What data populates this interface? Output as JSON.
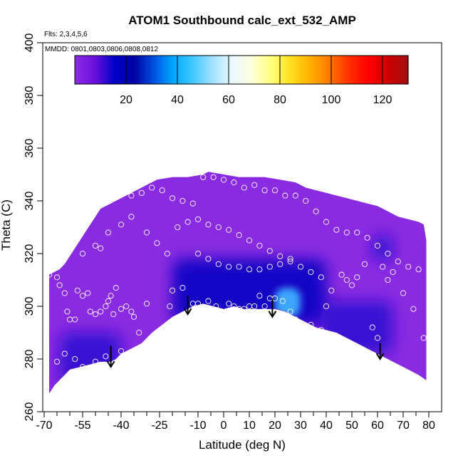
{
  "chart_data": {
    "type": "heatmap",
    "title": "ATOM1 Southbound calc_ext_532_AMP",
    "subtitle_flights": "Flts: 2,3,4,5,6",
    "subtitle_dates": "MMDD: 0801,0803,0806,0808,0812",
    "xlabel": "Latitude (deg N)",
    "ylabel": "Theta (C)",
    "xlim": [
      -70,
      80
    ],
    "ylim": [
      260,
      400
    ],
    "x_ticks": [
      -70,
      -55,
      -40,
      -25,
      -10,
      0,
      10,
      20,
      30,
      40,
      50,
      60,
      70,
      80
    ],
    "x_tick_labels": [
      "-70",
      "-55",
      "-40",
      "-25",
      "-10",
      "0",
      "10",
      "20",
      "30",
      "40",
      "50",
      "60",
      "70",
      "80"
    ],
    "y_ticks": [
      260,
      280,
      300,
      320,
      340,
      360,
      380,
      400
    ],
    "y_tick_labels": [
      "260",
      "280",
      "300",
      "320",
      "340",
      "360",
      "380",
      "400"
    ],
    "colorbar": {
      "range": [
        0,
        130
      ],
      "ticks": [
        20,
        40,
        60,
        80,
        100,
        120
      ],
      "tick_labels": [
        "20",
        "40",
        "60",
        "80",
        "100",
        "120"
      ],
      "colors": [
        "#8a2be2",
        "#6a10dd",
        "#0000c8",
        "#0000a0",
        "#0050e0",
        "#00a8ff",
        "#40c8ff",
        "#a0e0ff",
        "#e8f8ff",
        "#ffffe0",
        "#ffff80",
        "#ffe020",
        "#ffb000",
        "#ff7800",
        "#ff3000",
        "#ff0000",
        "#d00000",
        "#a01010"
      ]
    },
    "field_color_background": "#8a2be2",
    "field_color_low": "#0a0ad0",
    "field_color_high": "#40b0ff",
    "upper_boundary": [
      [
        -68,
        312
      ],
      [
        -66,
        313
      ],
      [
        -64,
        314
      ],
      [
        -62,
        316
      ],
      [
        -60,
        319
      ],
      [
        -58,
        322
      ],
      [
        -56,
        325
      ],
      [
        -54,
        328
      ],
      [
        -52,
        331
      ],
      [
        -50,
        334
      ],
      [
        -48,
        337
      ],
      [
        -46,
        338
      ],
      [
        -44,
        339
      ],
      [
        -42,
        340
      ],
      [
        -40,
        341
      ],
      [
        -38,
        342
      ],
      [
        -36,
        343
      ],
      [
        -34,
        344
      ],
      [
        -32,
        345
      ],
      [
        -30,
        346
      ],
      [
        -28,
        347
      ],
      [
        -26,
        348
      ],
      [
        -20,
        349
      ],
      [
        -14,
        349
      ],
      [
        -8,
        350
      ],
      [
        -6,
        351
      ],
      [
        0,
        350
      ],
      [
        6,
        349
      ],
      [
        10,
        349
      ],
      [
        16,
        349
      ],
      [
        22,
        348
      ],
      [
        28,
        347
      ],
      [
        32,
        345
      ],
      [
        36,
        344
      ],
      [
        40,
        343
      ],
      [
        44,
        342
      ],
      [
        48,
        341
      ],
      [
        52,
        340
      ],
      [
        56,
        339
      ],
      [
        60,
        338
      ],
      [
        64,
        336
      ],
      [
        68,
        334
      ],
      [
        72,
        333
      ],
      [
        76,
        332
      ],
      [
        78,
        331
      ],
      [
        79,
        325
      ]
    ],
    "lower_boundary": [
      [
        -68,
        267
      ],
      [
        -66,
        270
      ],
      [
        -64,
        272
      ],
      [
        -62,
        274
      ],
      [
        -60,
        276
      ],
      [
        -56,
        277
      ],
      [
        -52,
        278
      ],
      [
        -48,
        279
      ],
      [
        -44,
        279
      ],
      [
        -42,
        280
      ],
      [
        -40,
        282
      ],
      [
        -36,
        284
      ],
      [
        -32,
        286
      ],
      [
        -28,
        290
      ],
      [
        -24,
        293
      ],
      [
        -20,
        296
      ],
      [
        -16,
        298
      ],
      [
        -12,
        300
      ],
      [
        -8,
        301
      ],
      [
        -4,
        300
      ],
      [
        0,
        299
      ],
      [
        4,
        300
      ],
      [
        8,
        299
      ],
      [
        12,
        299
      ],
      [
        16,
        299
      ],
      [
        20,
        299
      ],
      [
        24,
        298
      ],
      [
        28,
        296
      ],
      [
        32,
        294
      ],
      [
        36,
        292
      ],
      [
        40,
        291
      ],
      [
        44,
        290
      ],
      [
        48,
        288
      ],
      [
        52,
        286
      ],
      [
        56,
        284
      ],
      [
        60,
        282
      ],
      [
        64,
        280
      ],
      [
        68,
        278
      ],
      [
        72,
        276
      ],
      [
        76,
        274
      ],
      [
        79,
        272
      ]
    ],
    "enhancement_regions": [
      {
        "lat": [
          -20,
          40
        ],
        "theta": [
          293,
          318
        ],
        "level": "high"
      },
      {
        "lat": [
          -64,
          -40
        ],
        "theta": [
          270,
          290
        ],
        "level": "medium"
      },
      {
        "lat": [
          38,
          66
        ],
        "theta": [
          282,
          302
        ],
        "level": "medium"
      },
      {
        "lat": [
          20,
          30
        ],
        "theta": [
          296,
          307
        ],
        "level": "peak"
      },
      {
        "lat": [
          58,
          66
        ],
        "theta": [
          317,
          327
        ],
        "level": "medium"
      }
    ],
    "arrows": [
      {
        "lat": -44,
        "theta_top": 285,
        "theta_tip": 277
      },
      {
        "lat": -14,
        "theta_top": 304,
        "theta_tip": 297
      },
      {
        "lat": 19,
        "theta_top": 303,
        "theta_tip": 296
      },
      {
        "lat": 61,
        "theta_top": 286,
        "theta_tip": 280
      }
    ],
    "sample_points": [
      [
        -68,
        312
      ],
      [
        -65,
        311
      ],
      [
        -64,
        308
      ],
      [
        -62,
        305
      ],
      [
        -61,
        298
      ],
      [
        -60,
        295
      ],
      [
        -58,
        295
      ],
      [
        -57,
        306
      ],
      [
        -55,
        304
      ],
      [
        -53,
        305
      ],
      [
        -52,
        298
      ],
      [
        -50,
        297
      ],
      [
        -48,
        298
      ],
      [
        -46,
        300
      ],
      [
        -45,
        302
      ],
      [
        -44,
        304
      ],
      [
        -43,
        297
      ],
      [
        -42,
        307
      ],
      [
        -40,
        299
      ],
      [
        -38,
        300
      ],
      [
        -36,
        298
      ],
      [
        -35,
        296
      ],
      [
        -33,
        290
      ],
      [
        -30,
        301
      ],
      [
        -28,
        286
      ],
      [
        -26,
        283
      ],
      [
        -24,
        289
      ],
      [
        -21,
        300
      ],
      [
        -20,
        306
      ],
      [
        -19,
        293
      ],
      [
        -16,
        307
      ],
      [
        -12,
        301
      ],
      [
        -10,
        301
      ],
      [
        -6,
        302
      ],
      [
        -3,
        300
      ],
      [
        -1,
        298
      ],
      [
        2,
        301
      ],
      [
        4,
        300
      ],
      [
        6,
        299
      ],
      [
        8,
        299
      ],
      [
        10,
        300
      ],
      [
        12,
        300
      ],
      [
        14,
        304
      ],
      [
        16,
        300
      ],
      [
        18,
        303
      ],
      [
        20,
        303
      ],
      [
        23,
        302
      ],
      [
        26,
        298
      ],
      [
        28,
        295
      ],
      [
        32,
        292
      ],
      [
        34,
        293
      ],
      [
        38,
        291
      ],
      [
        40,
        300
      ],
      [
        42,
        306
      ],
      [
        46,
        312
      ],
      [
        48,
        310
      ],
      [
        50,
        308
      ],
      [
        52,
        311
      ],
      [
        55,
        316
      ],
      [
        58,
        292
      ],
      [
        60,
        288
      ],
      [
        62,
        315
      ],
      [
        64,
        310
      ],
      [
        66,
        313
      ],
      [
        70,
        305
      ],
      [
        74,
        299
      ],
      [
        78,
        288
      ],
      [
        -65,
        279
      ],
      [
        -62,
        282
      ],
      [
        -58,
        280
      ],
      [
        -55,
        277
      ],
      [
        -50,
        279
      ],
      [
        -46,
        281
      ],
      [
        -43,
        278
      ],
      [
        -40,
        283
      ],
      [
        -55,
        320
      ],
      [
        -50,
        323
      ],
      [
        -48,
        322
      ],
      [
        -45,
        328
      ],
      [
        -40,
        331
      ],
      [
        -36,
        342
      ],
      [
        -32,
        343
      ],
      [
        -28,
        345
      ],
      [
        -24,
        344
      ],
      [
        -20,
        341
      ],
      [
        -16,
        340
      ],
      [
        -12,
        339
      ],
      [
        -8,
        349
      ],
      [
        -4,
        349
      ],
      [
        0,
        348
      ],
      [
        4,
        347
      ],
      [
        8,
        345
      ],
      [
        12,
        346
      ],
      [
        16,
        344
      ],
      [
        20,
        344
      ],
      [
        24,
        342
      ],
      [
        28,
        342
      ],
      [
        32,
        340
      ],
      [
        36,
        336
      ],
      [
        40,
        332
      ],
      [
        44,
        329
      ],
      [
        48,
        328
      ],
      [
        52,
        328
      ],
      [
        56,
        326
      ],
      [
        60,
        323
      ],
      [
        64,
        320
      ],
      [
        68,
        317
      ],
      [
        72,
        315
      ],
      [
        76,
        314
      ],
      [
        -36,
        334
      ],
      [
        -30,
        328
      ],
      [
        -26,
        324
      ],
      [
        -22,
        320
      ],
      [
        -18,
        330
      ],
      [
        -14,
        332
      ],
      [
        -10,
        333
      ],
      [
        -6,
        331
      ],
      [
        -2,
        330
      ],
      [
        2,
        329
      ],
      [
        6,
        327
      ],
      [
        10,
        325
      ],
      [
        14,
        323
      ],
      [
        18,
        321
      ],
      [
        22,
        319
      ],
      [
        26,
        317
      ],
      [
        30,
        315
      ],
      [
        34,
        313
      ],
      [
        38,
        311
      ],
      [
        -10,
        320
      ],
      [
        -6,
        318
      ],
      [
        -2,
        316
      ],
      [
        2,
        315
      ],
      [
        6,
        315
      ],
      [
        10,
        314
      ],
      [
        14,
        314
      ],
      [
        18,
        315
      ],
      [
        22,
        316
      ],
      [
        26,
        318
      ]
    ]
  }
}
